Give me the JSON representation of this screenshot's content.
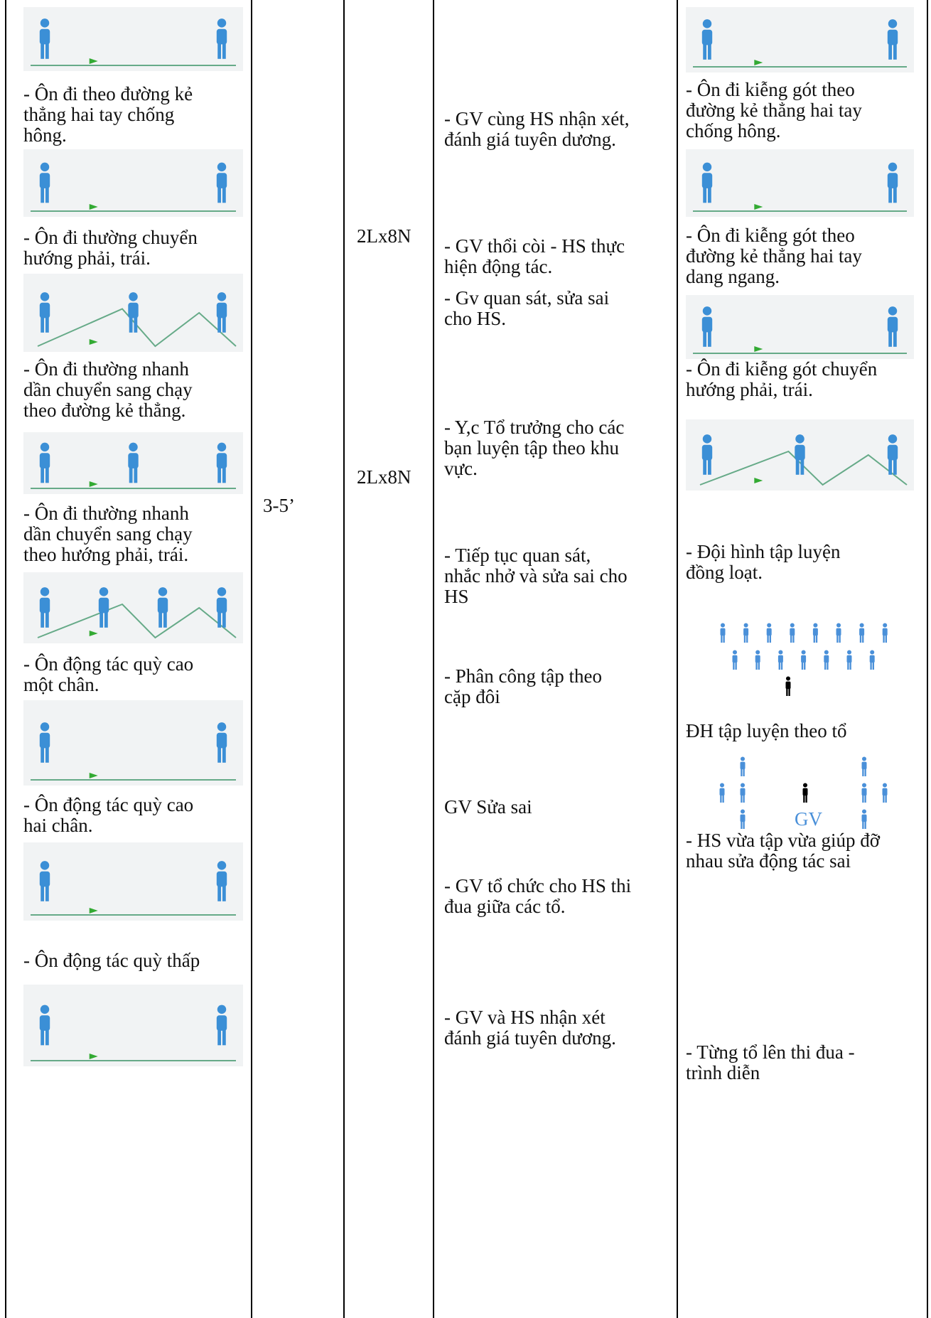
{
  "table": {
    "exercises": [
      "- Ôn đi theo đường kẻ\nthẳng hai tay chống\nhông.",
      " - Ôn đi thường chuyển\nhướng phải, trái.",
      "- Ôn đi thường nhanh\ndần chuyển sang chạy\ntheo đường kẻ thẳng.",
      " - Ôn đi thường nhanh\ndần chuyển sang chạy\ntheo hướng phải, trái.",
      "- Ôn động tác quỳ cao\nmột chân.",
      "- Ôn động tác quỳ cao\nhai chân.",
      "- Ôn động tác quỳ thấp"
    ],
    "time": [
      "3-5’"
    ],
    "amount": [
      "2Lx8N",
      "2Lx8N"
    ],
    "teacher": [
      "- GV cùng HS nhận xét,\nđánh giá tuyên dương.",
      "- GV thổi còi - HS thực\nhiện động tác.",
      "- Gv  quan sát, sửa sai\ncho HS.",
      "- Y,c Tổ trưởng cho các\nbạn luyện tập theo khu\nvực.",
      "- Tiếp tục quan sát,\nnhắc nhở và sửa sai cho\nHS",
      "- Phân công tập theo\ncặp đôi",
      "GV Sửa sai",
      "- GV tổ chức cho HS thi\nđua giữa các tổ.",
      "- GV và HS nhận xét\nđánh giá tuyên dương."
    ],
    "students": [
      "- Ôn đi kiễng gót theo\nđường kẻ thẳng hai tay\nchống hông.",
      " - Ôn đi kiễng gót theo\nđường kẻ thẳng hai tay\ndang ngang.",
      "- Ôn đi kiễng gót chuyển\nhướng phải, trái.",
      "- Đội hình tập luyện\nđồng loạt.",
      "ĐH tập luyện theo tổ",
      "- HS vừa tập vừa giúp đỡ\nnhau sửa động tác sai",
      "- Từng tổ  lên  thi đua -\ntrình diễn"
    ],
    "formation_teacher_label": "GV"
  }
}
